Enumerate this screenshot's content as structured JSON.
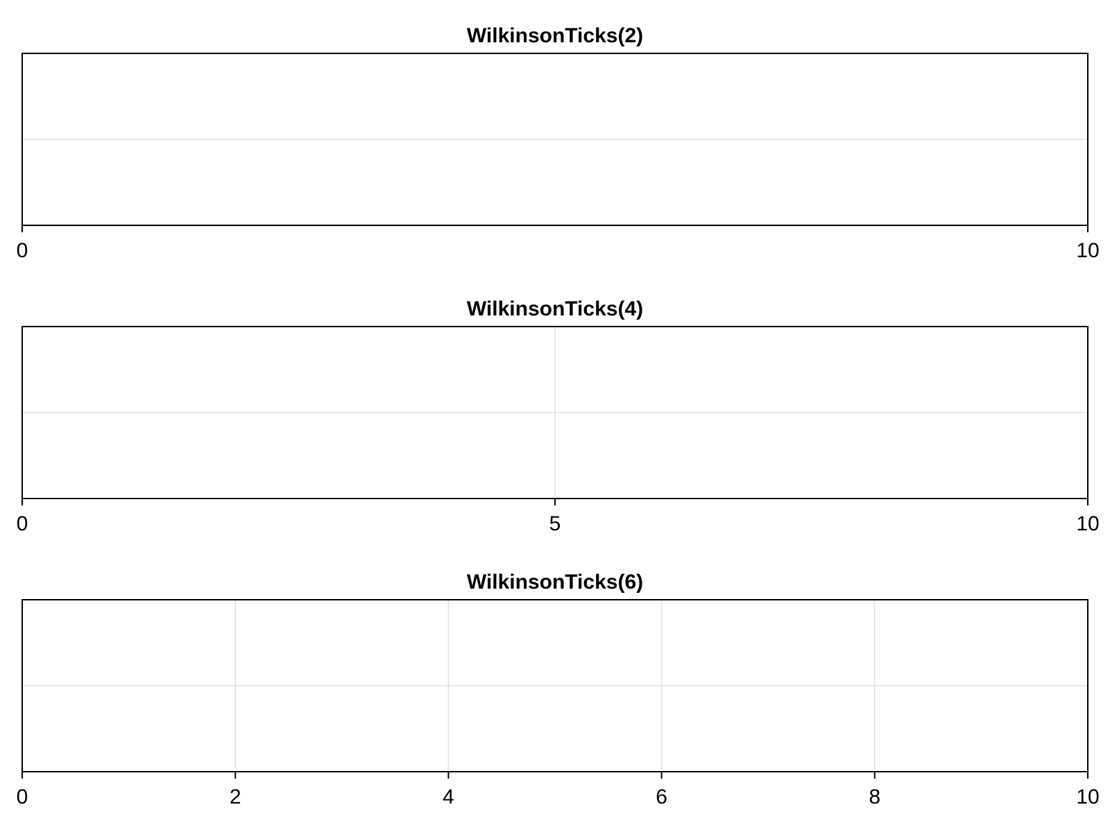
{
  "chart_data": [
    {
      "type": "line",
      "title": "WilkinsonTicks(2)",
      "xlabel": "",
      "ylabel": "",
      "xlim": [
        0,
        10
      ],
      "xticks": [
        0,
        10
      ],
      "xtick_labels": [
        "0",
        "10"
      ],
      "series": [],
      "grid": true
    },
    {
      "type": "line",
      "title": "WilkinsonTicks(4)",
      "xlabel": "",
      "ylabel": "",
      "xlim": [
        0,
        10
      ],
      "xticks": [
        0,
        5,
        10
      ],
      "xtick_labels": [
        "0",
        "5",
        "10"
      ],
      "series": [],
      "grid": true
    },
    {
      "type": "line",
      "title": "WilkinsonTicks(6)",
      "xlabel": "",
      "ylabel": "",
      "xlim": [
        0,
        10
      ],
      "xticks": [
        0,
        2,
        4,
        6,
        8,
        10
      ],
      "xtick_labels": [
        "0",
        "2",
        "4",
        "6",
        "8",
        "10"
      ],
      "series": [],
      "grid": true
    }
  ],
  "colors": {
    "axis": "#000000",
    "grid": "#e0e0e0",
    "background": "#ffffff"
  }
}
